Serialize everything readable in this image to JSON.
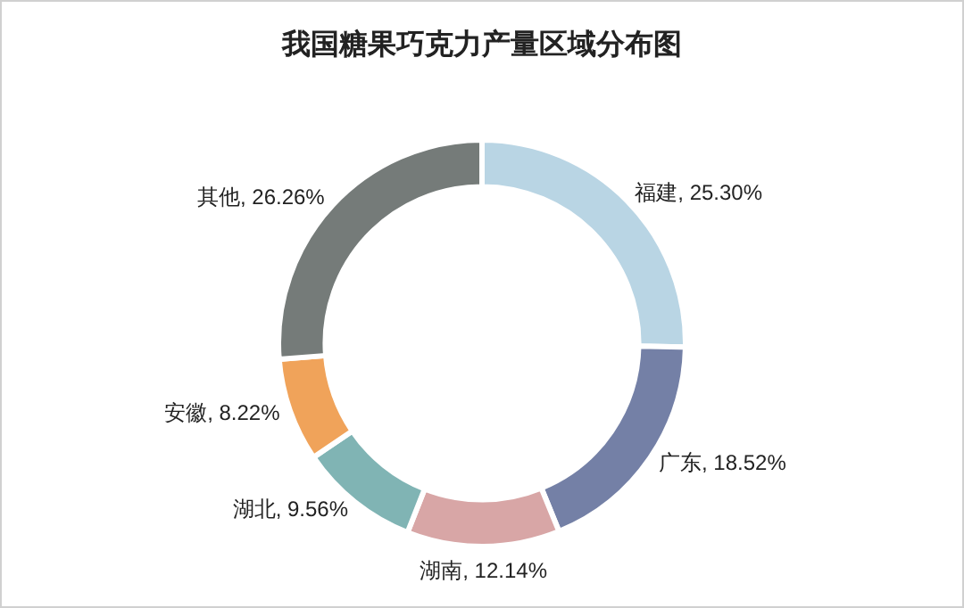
{
  "chart_data": {
    "type": "donut",
    "title": "我国糖果巧克力产量区域分布图",
    "categories": [
      "福建",
      "广东",
      "湖南",
      "湖北",
      "安徽",
      "其他"
    ],
    "values": [
      25.3,
      18.52,
      12.14,
      9.56,
      8.22,
      26.26
    ],
    "value_labels": [
      "25.30%",
      "18.52%",
      "12.14%",
      "9.56%",
      "8.22%",
      "26.26%"
    ],
    "colors": [
      "#b9d5e4",
      "#7480a6",
      "#d8a6a6",
      "#80b4b4",
      "#f0a35a",
      "#757b79"
    ],
    "legend": false
  }
}
